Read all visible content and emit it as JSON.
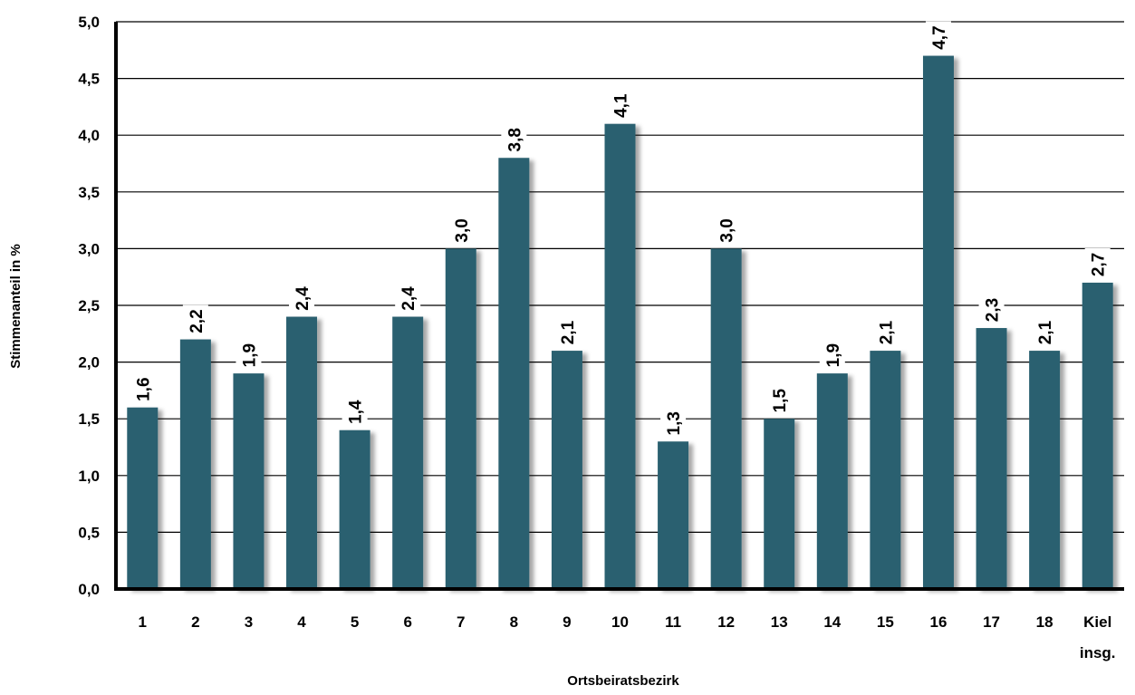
{
  "chart_data": {
    "type": "bar",
    "xlabel": "Ortsbeiratsbezirk",
    "ylabel": "Stimmenanteil in %",
    "ylim": [
      0,
      5
    ],
    "yticks": [
      "0,0",
      "0,5",
      "1,0",
      "1,5",
      "2,0",
      "2,5",
      "3,0",
      "3,5",
      "4,0",
      "4,5",
      "5,0"
    ],
    "grid": true,
    "bar_color": "#2a6070",
    "categories": [
      [
        "1"
      ],
      [
        "2"
      ],
      [
        "3"
      ],
      [
        "4"
      ],
      [
        "5"
      ],
      [
        "6"
      ],
      [
        "7"
      ],
      [
        "8"
      ],
      [
        "9"
      ],
      [
        "10"
      ],
      [
        "11"
      ],
      [
        "12"
      ],
      [
        "13"
      ],
      [
        "14"
      ],
      [
        "15"
      ],
      [
        "16"
      ],
      [
        "17"
      ],
      [
        "18"
      ],
      [
        "Kiel",
        "insg."
      ]
    ],
    "values": [
      1.6,
      2.2,
      1.9,
      2.4,
      1.4,
      2.4,
      3.0,
      3.8,
      2.1,
      4.1,
      1.3,
      3.0,
      1.5,
      1.9,
      2.1,
      4.7,
      2.3,
      2.1,
      2.7
    ],
    "value_labels": [
      "1,6",
      "2,2",
      "1,9",
      "2,4",
      "1,4",
      "2,4",
      "3,0",
      "3,8",
      "2,1",
      "4,1",
      "1,3",
      "3,0",
      "1,5",
      "1,9",
      "2,1",
      "4,7",
      "2,3",
      "2,1",
      "2,7"
    ]
  }
}
